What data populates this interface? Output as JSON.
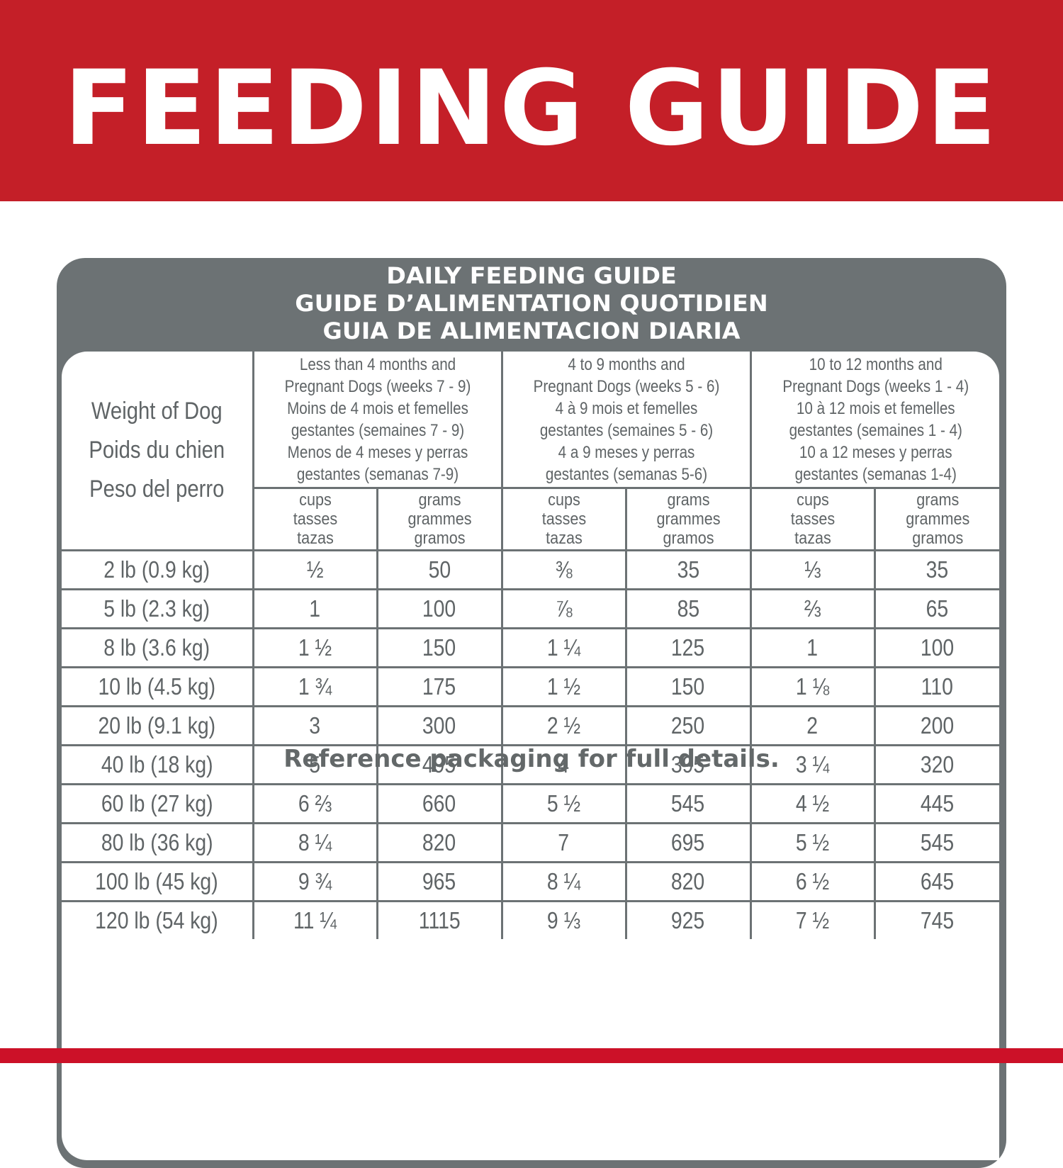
{
  "banner": {
    "title": "FEEDING GUIDE",
    "background_color": "#c41f28"
  },
  "card": {
    "title_lines": [
      "DAILY FEEDING GUIDE",
      "GUIDE D’ALIMENTATION QUOTIDIEN",
      "GUIA DE ALIMENTACION DIARIA"
    ],
    "frame_color": "#6c7274"
  },
  "table": {
    "weight_header": [
      "Weight of Dog",
      "Poids du chien",
      "Peso del perro"
    ],
    "groups": [
      {
        "lines": [
          "Less than 4 months and",
          "Pregnant Dogs (weeks 7 - 9)",
          "Moins de 4 mois et femelles",
          "gestantes (semaines 7 - 9)",
          "Menos de 4 meses y perras",
          "gestantes (semanas 7-9)"
        ]
      },
      {
        "lines": [
          "4 to 9 months and",
          "Pregnant Dogs (weeks 5 - 6)",
          "4 à 9 mois et femelles",
          "gestantes (semaines 5 - 6)",
          "4 a 9 meses y perras",
          "gestantes (semanas 5-6)"
        ]
      },
      {
        "lines": [
          "10 to 12 months and",
          "Pregnant Dogs (weeks 1 - 4)",
          "10 à 12 mois et femelles",
          "gestantes (semaines 1 - 4)",
          "10 a 12 meses y perras",
          "gestantes (semanas 1-4)"
        ]
      }
    ],
    "unit_headers": {
      "cups": [
        "cups",
        "tasses",
        "tazas"
      ],
      "grams": [
        "grams",
        "grammes",
        "gramos"
      ]
    },
    "rows": [
      {
        "weight": "2 lb (0.9 kg)",
        "values": [
          "½",
          "50",
          "⅜",
          "35",
          "⅓",
          "35"
        ]
      },
      {
        "weight": "5 lb (2.3 kg)",
        "values": [
          "1",
          "100",
          "⅞",
          "85",
          "⅔",
          "65"
        ]
      },
      {
        "weight": "8 lb (3.6 kg)",
        "values": [
          "1 ½",
          "150",
          "1 ¼",
          "125",
          "1",
          "100"
        ]
      },
      {
        "weight": "10 lb (4.5 kg)",
        "values": [
          "1 ¾",
          "175",
          "1 ½",
          "150",
          "1 ⅛",
          "110"
        ]
      },
      {
        "weight": "20 lb (9.1 kg)",
        "values": [
          "3",
          "300",
          "2 ½",
          "250",
          "2",
          "200"
        ]
      },
      {
        "weight": "40 lb (18 kg)",
        "values": [
          "5",
          "495",
          "4",
          "395",
          "3 ¼",
          "320"
        ]
      },
      {
        "weight": "60 lb (27 kg)",
        "values": [
          "6 ⅔",
          "660",
          "5 ½",
          "545",
          "4 ½",
          "445"
        ]
      },
      {
        "weight": "80 lb (36 kg)",
        "values": [
          "8 ¼",
          "820",
          "7",
          "695",
          "5 ½",
          "545"
        ]
      },
      {
        "weight": "100 lb (45 kg)",
        "values": [
          "9 ¾",
          "965",
          "8 ¼",
          "820",
          "6 ½",
          "645"
        ]
      },
      {
        "weight": "120 lb (54 kg)",
        "values": [
          "11 ¼",
          "1115",
          "9 ⅓",
          "925",
          "7 ½",
          "745"
        ]
      }
    ]
  },
  "footer": {
    "note": "Reference packaging for full details.",
    "band_color": "#cc1128"
  }
}
